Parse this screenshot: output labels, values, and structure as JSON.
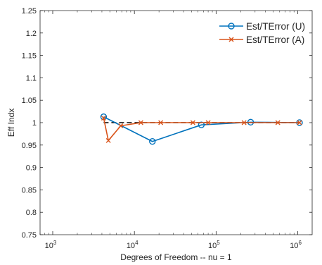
{
  "chart_data": {
    "type": "line",
    "xlabel": "Degrees of Freedom -- nu = 1",
    "ylabel": "Eff Indx",
    "xscale": "log",
    "xlim": [
      700,
      1500000
    ],
    "ylim": [
      0.75,
      1.25
    ],
    "grid": false,
    "legend_position": "top-right",
    "yticks": [
      "0.75",
      "0.8",
      "0.85",
      "0.9",
      "0.95",
      "1",
      "1.05",
      "1.1",
      "1.15",
      "1.2",
      "1.25"
    ],
    "xticks": [
      {
        "value": 1000,
        "base": "10",
        "exp": "3"
      },
      {
        "value": 10000,
        "base": "10",
        "exp": "4"
      },
      {
        "value": 100000,
        "base": "10",
        "exp": "5"
      },
      {
        "value": 1000000,
        "base": "10",
        "exp": "6"
      }
    ],
    "reference_line": {
      "y": 1.0,
      "x_range": [
        4200,
        1050000
      ],
      "color": "#000000",
      "style": "dashed"
    },
    "series": [
      {
        "name": "Est/TError (U)",
        "color": "#0072BD",
        "marker": "circle",
        "x": [
          4200,
          16600,
          66000,
          265000,
          1050000
        ],
        "y": [
          1.013,
          0.958,
          0.995,
          1.001,
          1.0
        ]
      },
      {
        "name": "Est/TError (A)",
        "color": "#D95319",
        "marker": "x",
        "x": [
          4200,
          4800,
          6800,
          12000,
          21000,
          52000,
          80000,
          220000,
          570000,
          1050000
        ],
        "y": [
          1.01,
          0.96,
          0.993,
          1.0,
          1.0,
          1.0,
          1.0,
          1.0,
          1.0,
          1.0
        ]
      }
    ]
  }
}
